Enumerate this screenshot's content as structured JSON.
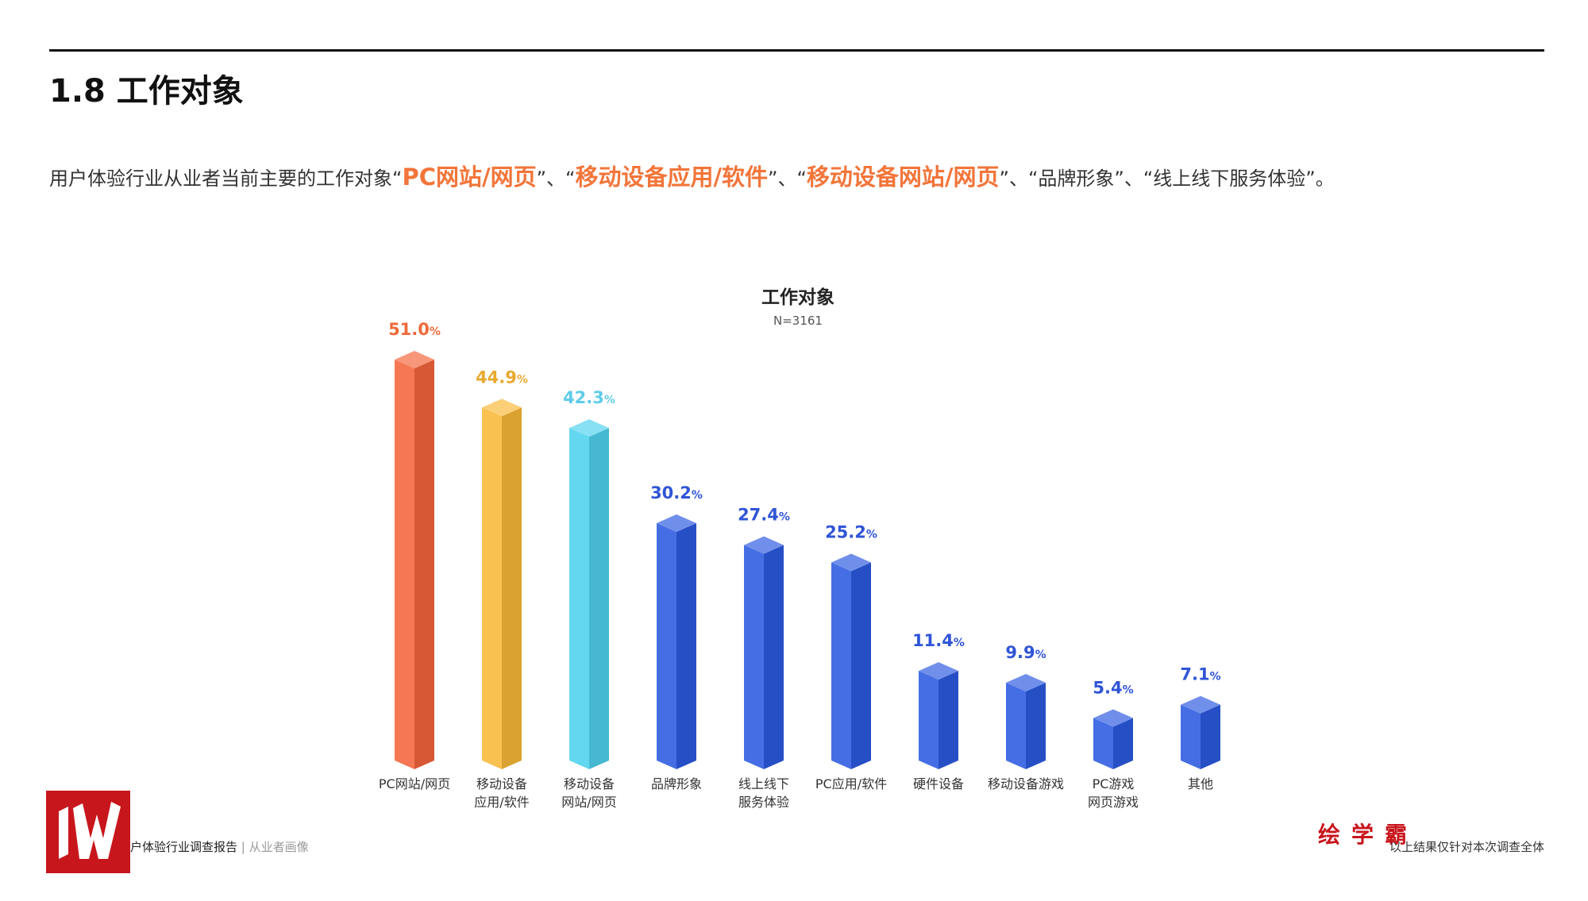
{
  "header": {
    "title": "1.8 工作对象"
  },
  "intro": {
    "prefix": "用户体验行业从业者当前主要的工作对象",
    "items": [
      "PC网站/网页",
      "移动设备应用/软件",
      "移动设备网站/网页",
      "品牌形象",
      "线上线下服务体验"
    ],
    "sep": "、",
    "end": "。"
  },
  "chart_data": {
    "type": "bar",
    "title": "工作对象",
    "subtitle": "N=3161",
    "categories": [
      "PC网站/网页",
      "移动设备\n应用/软件",
      "移动设备\n网站/网页",
      "品牌形象",
      "线上线下\n服务体验",
      "PC应用/软件",
      "硬件设备",
      "移动设备游戏",
      "PC游戏\n网页游戏",
      "其他"
    ],
    "values": [
      51.0,
      44.9,
      42.3,
      30.2,
      27.4,
      25.2,
      11.4,
      9.9,
      5.4,
      7.1
    ],
    "value_suffix": "%",
    "colors": [
      "#f4643c",
      "#f8b938",
      "#4fd1ee",
      "#2c5ae0",
      "#2c5ae0",
      "#2c5ae0",
      "#2c5ae0",
      "#2c5ae0",
      "#2c5ae0",
      "#2c5ae0"
    ],
    "label_colors": [
      "#ef6a3a",
      "#e9a830",
      "#5fcbe8",
      "#2f54d6",
      "#2f54d6",
      "#2f54d6",
      "#2f54d6",
      "#2f54d6",
      "#2f54d6",
      "#2f54d6"
    ],
    "grid": false,
    "legend": "none"
  },
  "footer": {
    "report": "户体验行业调查报告",
    "separator": "|",
    "section": "从业者画像",
    "brand": "绘学霸",
    "note": "以上结果仅针对本次调查全体"
  }
}
